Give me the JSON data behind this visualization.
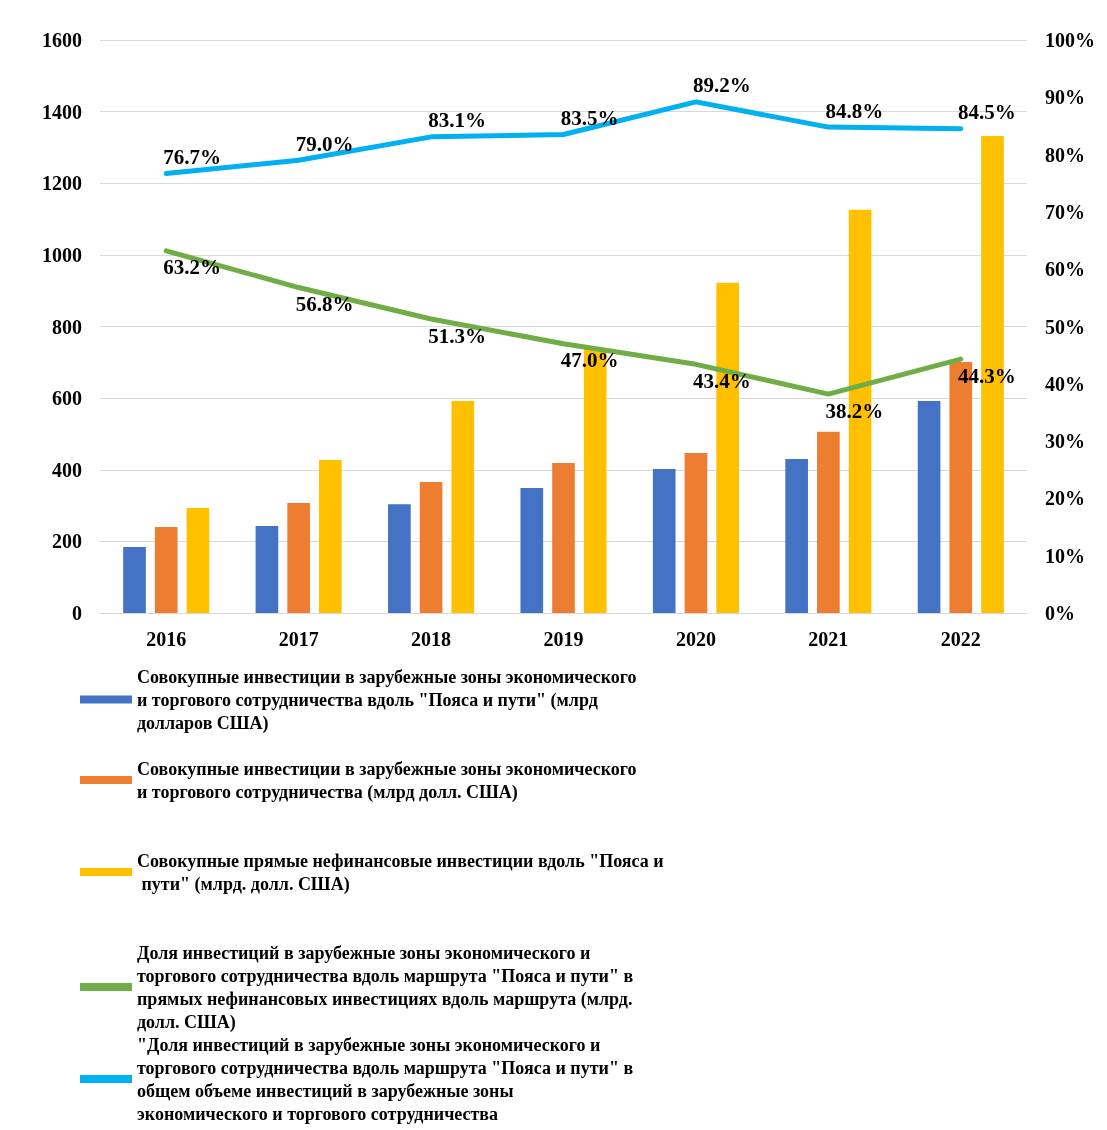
{
  "chart_data": {
    "type": "bar",
    "categories": [
      "2016",
      "2017",
      "2018",
      "2019",
      "2020",
      "2021",
      "2022"
    ],
    "series": [
      {
        "name": "Совокупные инвестиции в зарубежные зоны экономического и торгового сотрудничества вдоль \"Пояса и пути\" (млрд долларов США)",
        "color": "#4472c4",
        "values": [
          184,
          243,
          304,
          349,
          402,
          430,
          592
        ]
      },
      {
        "name": "Совокупные инвестиции в зарубежные зоны экономического и торгового сотрудничества (млрд долл. США)",
        "color": "#ed7d31",
        "values": [
          240,
          307,
          366,
          419,
          447,
          506,
          701
        ]
      },
      {
        "name": "Совокупные прямые нефинансовые инвестиции вдоль \"Пояса и пути\" (млрд. долл. США)",
        "color": "#ffc000",
        "values": [
          293,
          427,
          592,
          740,
          922,
          1126,
          1332
        ]
      },
      {
        "name": "Доля инвестиций в зарубежные зоны экономического и торгового сотрудничества вдоль маршрута \"Пояса и пути\" в прямых нефинансовых инвестициях вдоль маршрута (млрд. долл. США)",
        "type": "line",
        "axis": "y2",
        "color": "#70ad47",
        "values": [
          63.2,
          56.8,
          51.3,
          47.0,
          43.4,
          38.2,
          44.3
        ],
        "value_labels": [
          "63.2%",
          "56.8%",
          "51.3%",
          "47.0%",
          "43.4%",
          "38.2%",
          "44.3%"
        ]
      },
      {
        "name": "\"Доля инвестиций в зарубежные зоны экономического и торгового сотрудничества вдоль маршрута \"Пояса и пути\" в общем объеме инвестиций в зарубежные зоны экономического и торгового сотрудничества",
        "type": "line",
        "axis": "y2",
        "color": "#00b0f0",
        "values": [
          76.7,
          79.0,
          83.1,
          83.5,
          89.2,
          84.8,
          84.5
        ],
        "value_labels": [
          "76.7%",
          "79.0%",
          "83.1%",
          "83.5%",
          "89.2%",
          "84.8%",
          "84.5%"
        ]
      }
    ],
    "ylim": [
      0,
      1600
    ],
    "yticks": [
      0,
      200,
      400,
      600,
      800,
      1000,
      1200,
      1400,
      1600
    ],
    "y2lim": [
      0,
      100
    ],
    "y2ticks": [
      {
        "value": 0,
        "label": "0%"
      },
      {
        "value": 10,
        "label": "10%"
      },
      {
        "value": 20,
        "label": "20%"
      },
      {
        "value": 30,
        "label": "30%"
      },
      {
        "value": 40,
        "label": "40%"
      },
      {
        "value": 50,
        "label": "50%"
      },
      {
        "value": 60,
        "label": "60%"
      },
      {
        "value": 70,
        "label": "70%"
      },
      {
        "value": 80,
        "label": "80%"
      },
      {
        "value": 90,
        "label": "90%"
      },
      {
        "value": 100,
        "label": "100%"
      }
    ],
    "grid": "y",
    "legend": "bottom",
    "marker": "none",
    "line_style": "solid"
  }
}
